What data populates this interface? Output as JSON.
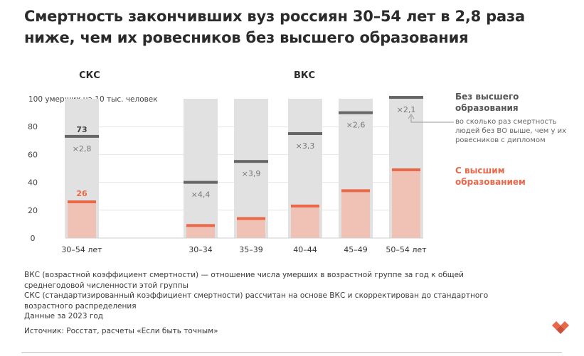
{
  "title": "Смертность закончивших вуз россиян 30–54 лет в 2,8 раза ниже, чем их ровесников без высшего образования",
  "colors": {
    "no_higher": "#666666",
    "higher": "#e8684a",
    "higher_fill": "#efc2b5",
    "column_bg": "#e1e1e1"
  },
  "chart_data": [
    {
      "type": "bar",
      "title": "СКС",
      "ylabel": "100 умерших на 10 тыс. человек",
      "ylim": [
        0,
        100
      ],
      "yticks": [
        0,
        20,
        40,
        60,
        80
      ],
      "categories": [
        "30–54 лет"
      ],
      "series": [
        {
          "name": "Без высшего образования",
          "values": [
            73
          ]
        },
        {
          "name": "С высшим образованием",
          "values": [
            26
          ]
        }
      ],
      "ratios": [
        "×2,8"
      ],
      "value_labels": [
        "73",
        "26"
      ]
    },
    {
      "type": "bar",
      "title": "ВКС",
      "ylim": [
        0,
        100
      ],
      "categories": [
        "30–34",
        "35–39",
        "40–44",
        "45–49",
        "50–54 лет"
      ],
      "series": [
        {
          "name": "Без высшего образования",
          "values": [
            40,
            55,
            75,
            90,
            101
          ]
        },
        {
          "name": "С высшим образованием",
          "values": [
            9,
            14,
            23,
            34,
            49
          ]
        }
      ],
      "ratios": [
        "×4,4",
        "×3,9",
        "×3,3",
        "×2,6",
        "×2,1"
      ]
    }
  ],
  "legend": {
    "no_higher": "Без высшего образования",
    "ratio_note": "во сколько раз смертность людей без ВО выше, чем у их ровесников с дипломом",
    "higher": "С высшим образованием"
  },
  "notes": [
    "ВКС (возрастной коэффициент смертности) — отношение числа умерших в возрастной группе за год к общей среднегодовой численности этой группы",
    "СКС (стандартизированный коэффициент смертности) рассчитан на основе ВКС и скорректирован до стандартного возрастного распределения",
    "Данные за 2023 год"
  ],
  "source": "Источник: Росстат, расчеты «Если быть точным»"
}
